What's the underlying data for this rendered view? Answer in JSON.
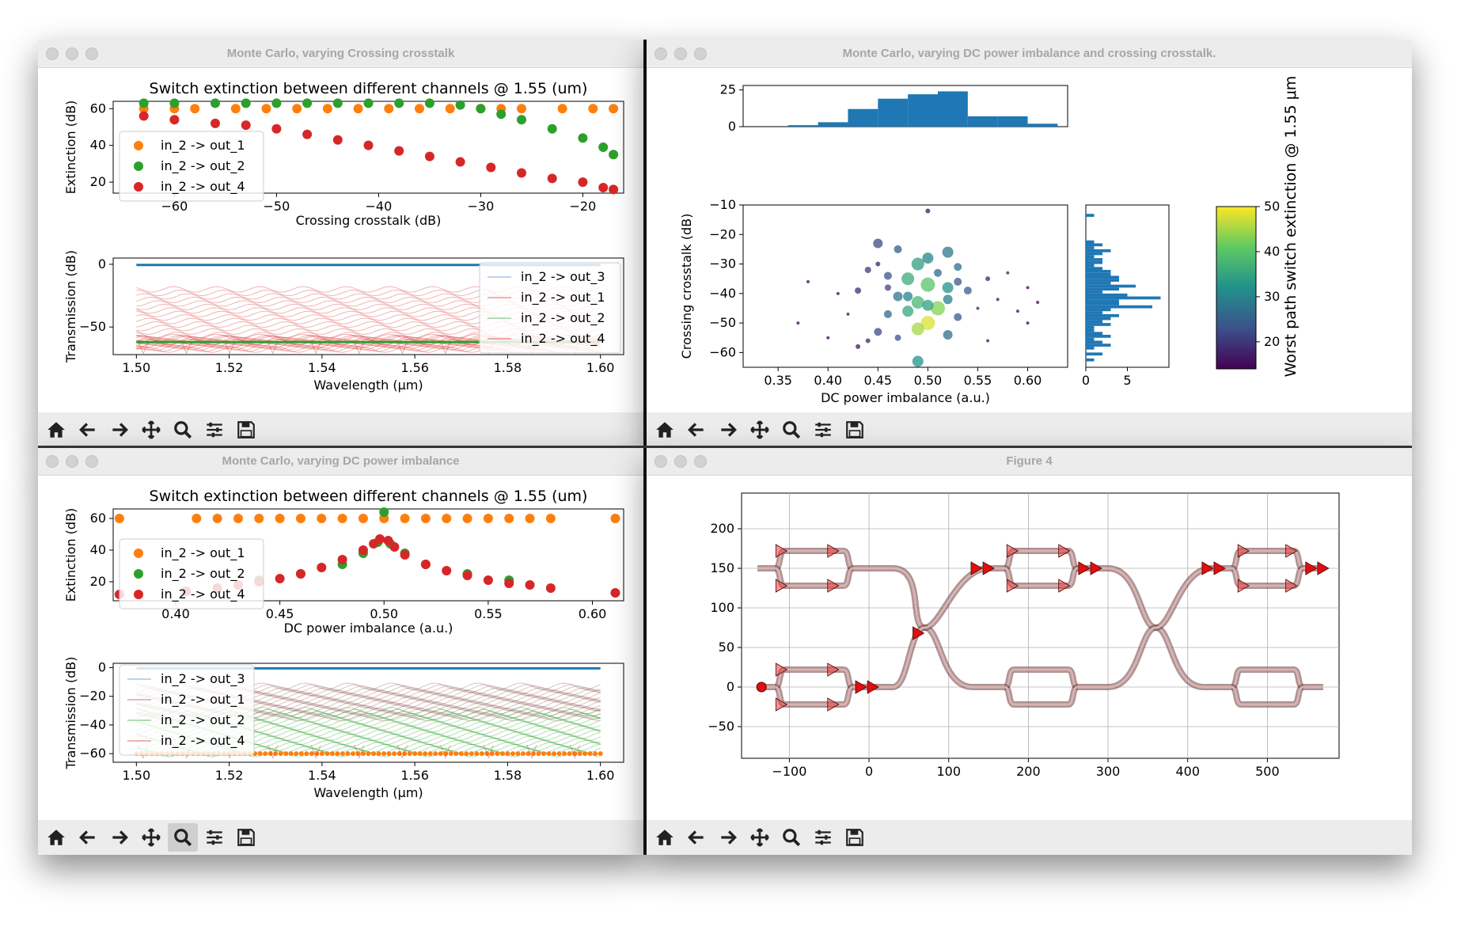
{
  "windows": {
    "w1": {
      "title": "Monte Carlo, varying Crossing crosstalk"
    },
    "w2": {
      "title": "Monte Carlo, varying DC power imbalance and crossing crosstalk."
    },
    "w3": {
      "title": "Monte Carlo, varying DC power imbalance"
    },
    "w4": {
      "title": "Figure 4"
    }
  },
  "toolbar_icons": [
    "home-icon",
    "back-arrow-icon",
    "forward-arrow-icon",
    "pan-icon",
    "zoom-icon",
    "configure-subplots-icon",
    "save-icon"
  ],
  "colors": {
    "orange": "#ff7f0e",
    "green": "#2ca02c",
    "red": "#d62728",
    "blue": "#1f77b4",
    "lightblue": "#aec7e8",
    "brown": "#8c564b"
  },
  "chart_data": [
    {
      "id": "w1-top",
      "type": "scatter",
      "title": "Switch extinction between different channels @ 1.55 (um)",
      "xlabel": "Crossing crosstalk  (dB)",
      "ylabel": "Extinction (dB)",
      "xlim": [
        -66,
        -16
      ],
      "ylim": [
        14,
        64
      ],
      "xticks": [
        -60,
        -50,
        -40,
        -30,
        -20
      ],
      "xtick_labels": [
        "−60",
        "−50",
        "−40",
        "−30",
        "−20"
      ],
      "yticks": [
        20,
        40,
        60
      ],
      "ytick_labels": [
        "20",
        "40",
        "60"
      ],
      "legend": [
        "in_2 -> out_1",
        "in_2 -> out_2",
        "in_2 -> out_4"
      ],
      "legend_position": "left",
      "series": [
        {
          "name": "in_2 -> out_1",
          "points": [
            [
              -63,
              60
            ],
            [
              -60,
              60
            ],
            [
              -58,
              60
            ],
            [
              -54,
              60
            ],
            [
              -51,
              60
            ],
            [
              -48,
              60
            ],
            [
              -45,
              60
            ],
            [
              -42,
              60
            ],
            [
              -39,
              60
            ],
            [
              -36,
              60
            ],
            [
              -33,
              60
            ],
            [
              -30,
              60
            ],
            [
              -28,
              60
            ],
            [
              -26,
              60
            ],
            [
              -22,
              60
            ],
            [
              -19,
              60
            ],
            [
              -17,
              60
            ]
          ]
        },
        {
          "name": "in_2 -> out_2",
          "points": [
            [
              -63,
              63
            ],
            [
              -60,
              63
            ],
            [
              -56,
              63
            ],
            [
              -53,
              63
            ],
            [
              -50,
              63
            ],
            [
              -47,
              63
            ],
            [
              -44,
              63
            ],
            [
              -41,
              63
            ],
            [
              -38,
              63
            ],
            [
              -35,
              63
            ],
            [
              -32,
              62
            ],
            [
              -30,
              60
            ],
            [
              -28,
              57
            ],
            [
              -26,
              54
            ],
            [
              -23,
              49
            ],
            [
              -20,
              44
            ],
            [
              -18,
              39
            ],
            [
              -17,
              35
            ]
          ]
        },
        {
          "name": "in_2 -> out_4",
          "points": [
            [
              -63,
              56
            ],
            [
              -60,
              54
            ],
            [
              -56,
              52
            ],
            [
              -53,
              51
            ],
            [
              -50,
              49
            ],
            [
              -47,
              46
            ],
            [
              -44,
              43
            ],
            [
              -41,
              40
            ],
            [
              -38,
              37
            ],
            [
              -35,
              34
            ],
            [
              -32,
              31
            ],
            [
              -29,
              28
            ],
            [
              -26,
              25
            ],
            [
              -23,
              22
            ],
            [
              -20,
              20
            ],
            [
              -18,
              17
            ],
            [
              -17,
              16
            ]
          ]
        }
      ]
    },
    {
      "id": "w1-bottom",
      "type": "line",
      "xlabel": "Wavelength (μm)",
      "ylabel": "Transmission (dB)",
      "xlim": [
        1.495,
        1.605
      ],
      "ylim": [
        -72,
        5
      ],
      "xticks": [
        1.5,
        1.52,
        1.54,
        1.56,
        1.58,
        1.6
      ],
      "xtick_labels": [
        "1.50",
        "1.52",
        "1.54",
        "1.56",
        "1.58",
        "1.60"
      ],
      "yticks": [
        0,
        -50
      ],
      "ytick_labels": [
        "0",
        "−50"
      ],
      "legend": [
        "in_2 -> out_3",
        "in_2 -> out_1",
        "in_2 -> out_2",
        "in_2 -> out_4"
      ],
      "legend_position": "right",
      "series": [
        {
          "name": "in_2 -> out_3",
          "level": -0.5
        },
        {
          "name": "in_2 -> out_1",
          "band": [
            -62,
            -20
          ]
        },
        {
          "name": "in_2 -> out_2",
          "level": -62
        },
        {
          "name": "in_2 -> out_4",
          "band": [
            -68,
            -58
          ]
        }
      ]
    },
    {
      "id": "w3-top",
      "type": "scatter",
      "title": "Switch extinction between different channels @ 1.55 (um)",
      "xlabel": "DC power imbalance  (a.u.)",
      "ylabel": "Extinction (dB)",
      "xlim": [
        0.37,
        0.615
      ],
      "ylim": [
        8,
        66
      ],
      "xticks": [
        0.4,
        0.45,
        0.5,
        0.55,
        0.6
      ],
      "xtick_labels": [
        "0.40",
        "0.45",
        "0.50",
        "0.55",
        "0.60"
      ],
      "yticks": [
        20,
        40,
        60
      ],
      "ytick_labels": [
        "20",
        "40",
        "60"
      ],
      "legend": [
        "in_2 -> out_1",
        "in_2 -> out_2",
        "in_2 -> out_4"
      ],
      "legend_position": "left",
      "series": [
        {
          "name": "in_2 -> out_1",
          "points": [
            [
              0.373,
              60
            ],
            [
              0.41,
              60
            ],
            [
              0.42,
              60
            ],
            [
              0.43,
              60
            ],
            [
              0.44,
              60
            ],
            [
              0.45,
              60
            ],
            [
              0.46,
              60
            ],
            [
              0.47,
              60
            ],
            [
              0.48,
              60
            ],
            [
              0.49,
              60
            ],
            [
              0.5,
              60
            ],
            [
              0.51,
              60
            ],
            [
              0.52,
              60
            ],
            [
              0.53,
              60
            ],
            [
              0.54,
              60
            ],
            [
              0.55,
              60
            ],
            [
              0.56,
              60
            ],
            [
              0.57,
              60
            ],
            [
              0.58,
              60
            ],
            [
              0.611,
              60
            ]
          ]
        },
        {
          "name": "in_2 -> out_2",
          "points": [
            [
              0.44,
              21
            ],
            [
              0.46,
              25
            ],
            [
              0.48,
              31
            ],
            [
              0.49,
              38
            ],
            [
              0.497,
              45
            ],
            [
              0.5,
              64
            ],
            [
              0.503,
              44
            ],
            [
              0.51,
              38
            ],
            [
              0.52,
              31
            ],
            [
              0.54,
              25
            ],
            [
              0.56,
              21
            ]
          ]
        },
        {
          "name": "in_2 -> out_4",
          "points": [
            [
              0.373,
              12
            ],
            [
              0.405,
              14
            ],
            [
              0.42,
              16
            ],
            [
              0.43,
              18
            ],
            [
              0.44,
              20
            ],
            [
              0.45,
              22
            ],
            [
              0.46,
              25
            ],
            [
              0.47,
              29
            ],
            [
              0.48,
              34
            ],
            [
              0.49,
              40
            ],
            [
              0.495,
              44
            ],
            [
              0.498,
              47
            ],
            [
              0.502,
              46
            ],
            [
              0.505,
              42
            ],
            [
              0.51,
              37
            ],
            [
              0.52,
              31
            ],
            [
              0.53,
              27
            ],
            [
              0.54,
              24
            ],
            [
              0.55,
              21
            ],
            [
              0.56,
              19
            ],
            [
              0.57,
              18
            ],
            [
              0.58,
              16
            ],
            [
              0.611,
              13
            ]
          ]
        }
      ]
    },
    {
      "id": "w3-bottom",
      "type": "line",
      "xlabel": "Wavelength (μm)",
      "ylabel": "Transmission (dB)",
      "xlim": [
        1.495,
        1.605
      ],
      "ylim": [
        -66,
        3
      ],
      "xticks": [
        1.5,
        1.52,
        1.54,
        1.56,
        1.58,
        1.6
      ],
      "xtick_labels": [
        "1.50",
        "1.52",
        "1.54",
        "1.56",
        "1.58",
        "1.60"
      ],
      "yticks": [
        0,
        -20,
        -40,
        -60
      ],
      "ytick_labels": [
        "0",
        "−20",
        "−40",
        "−60"
      ],
      "legend": [
        "in_2 -> out_3",
        "in_2 -> out_1",
        "in_2 -> out_2",
        "in_2 -> out_4"
      ],
      "legend_position": "left",
      "series": [
        {
          "name": "in_2 -> out_3",
          "level": -0.5
        },
        {
          "name": "in_2 -> out_1",
          "band": [
            -35,
            -13
          ]
        },
        {
          "name": "in_2 -> out_2",
          "band": [
            -60,
            -30
          ]
        },
        {
          "name": "in_2 -> out_4",
          "level": -60
        }
      ]
    },
    {
      "id": "w2",
      "type": "scatter",
      "xlabel": "DC power imbalance (a.u.)",
      "ylabel": "Crossing crosstalk (dB)",
      "colorbar_label": "Worst path switch extinction @ 1.55 μm",
      "xlim": [
        0.315,
        0.64
      ],
      "ylim": [
        -65,
        -10
      ],
      "xticks": [
        0.35,
        0.4,
        0.45,
        0.5,
        0.55,
        0.6
      ],
      "xtick_labels": [
        "0.35",
        "0.40",
        "0.45",
        "0.50",
        "0.55",
        "0.60"
      ],
      "yticks": [
        -10,
        -20,
        -30,
        -40,
        -50,
        -60
      ],
      "ytick_labels": [
        "−10",
        "−20",
        "−30",
        "−40",
        "−50",
        "−60"
      ],
      "colorbar_ticks": [
        20,
        30,
        40,
        50
      ],
      "colorbar_range": [
        14,
        50
      ],
      "top_hist": {
        "yticks": [
          0,
          25
        ],
        "ytick_labels": [
          "0",
          "25"
        ],
        "bins": [
          0.33,
          0.36,
          0.39,
          0.42,
          0.45,
          0.48,
          0.51,
          0.54,
          0.57,
          0.6,
          0.63
        ],
        "counts": [
          0,
          1,
          3,
          12,
          19,
          22,
          24,
          7,
          7,
          2
        ]
      },
      "right_hist": {
        "xticks": [
          0,
          5
        ],
        "xtick_labels": [
          "0",
          "5"
        ],
        "bins_start": -65,
        "bin_width": 1,
        "counts": [
          0,
          0,
          1,
          0,
          2,
          0,
          1,
          3,
          2,
          1,
          3,
          2,
          1,
          1,
          3,
          2,
          3,
          4,
          2,
          3,
          8,
          4,
          4,
          9,
          5,
          2,
          4,
          6,
          3,
          4,
          4,
          3,
          3,
          2,
          1,
          2,
          2,
          1,
          2,
          3,
          1,
          2,
          1,
          0,
          0,
          0,
          0,
          0,
          0,
          0,
          0,
          1,
          0,
          0,
          0
        ]
      },
      "points": [
        [
          0.5,
          -12,
          16,
          3
        ],
        [
          0.45,
          -23,
          22,
          6
        ],
        [
          0.47,
          -25,
          24,
          5
        ],
        [
          0.52,
          -26,
          28,
          7
        ],
        [
          0.5,
          -28,
          30,
          7
        ],
        [
          0.49,
          -30,
          34,
          8
        ],
        [
          0.53,
          -31,
          27,
          5
        ],
        [
          0.44,
          -32,
          20,
          4
        ],
        [
          0.46,
          -34,
          23,
          5
        ],
        [
          0.48,
          -35,
          36,
          8
        ],
        [
          0.5,
          -37,
          40,
          9
        ],
        [
          0.52,
          -38,
          32,
          7
        ],
        [
          0.54,
          -39,
          25,
          5
        ],
        [
          0.43,
          -39,
          19,
          4
        ],
        [
          0.47,
          -41,
          28,
          6
        ],
        [
          0.49,
          -43,
          38,
          8
        ],
        [
          0.51,
          -45,
          43,
          9
        ],
        [
          0.48,
          -46,
          35,
          7
        ],
        [
          0.46,
          -47,
          26,
          5
        ],
        [
          0.53,
          -48,
          24,
          5
        ],
        [
          0.5,
          -50,
          48,
          9
        ],
        [
          0.49,
          -52,
          45,
          8
        ],
        [
          0.45,
          -53,
          22,
          5
        ],
        [
          0.52,
          -54,
          27,
          6
        ],
        [
          0.47,
          -55,
          23,
          4
        ],
        [
          0.44,
          -56,
          18,
          3
        ],
        [
          0.49,
          -63,
          32,
          7
        ],
        [
          0.38,
          -36,
          14,
          2
        ],
        [
          0.41,
          -40,
          15,
          2
        ],
        [
          0.58,
          -33,
          17,
          2
        ],
        [
          0.6,
          -38,
          15,
          2
        ],
        [
          0.61,
          -43,
          14,
          2
        ],
        [
          0.57,
          -42,
          16,
          2
        ],
        [
          0.56,
          -35,
          18,
          3
        ],
        [
          0.55,
          -45,
          17,
          2
        ],
        [
          0.59,
          -46,
          15,
          2
        ],
        [
          0.42,
          -47,
          16,
          2
        ],
        [
          0.37,
          -50,
          13,
          2
        ],
        [
          0.4,
          -55,
          14,
          2
        ],
        [
          0.43,
          -58,
          16,
          3
        ],
        [
          0.56,
          -56,
          16,
          2
        ],
        [
          0.6,
          -50,
          15,
          2
        ],
        [
          0.45,
          -30,
          18,
          3
        ],
        [
          0.51,
          -33,
          26,
          5
        ],
        [
          0.48,
          -41,
          30,
          6
        ],
        [
          0.5,
          -44,
          34,
          7
        ],
        [
          0.52,
          -42,
          29,
          6
        ],
        [
          0.46,
          -38,
          21,
          4
        ],
        [
          0.53,
          -36,
          24,
          5
        ]
      ]
    },
    {
      "id": "w4",
      "type": "layout",
      "xlim": [
        -160,
        590
      ],
      "ylim": [
        -90,
        245
      ],
      "xticks": [
        -100,
        0,
        100,
        200,
        300,
        400,
        500
      ],
      "xtick_labels": [
        "−100",
        "0",
        "100",
        "200",
        "300",
        "400",
        "500"
      ],
      "yticks": [
        200,
        150,
        100,
        50,
        0,
        -50
      ],
      "ytick_labels": [
        "200",
        "150",
        "100",
        "50",
        "0",
        "−50"
      ]
    }
  ]
}
